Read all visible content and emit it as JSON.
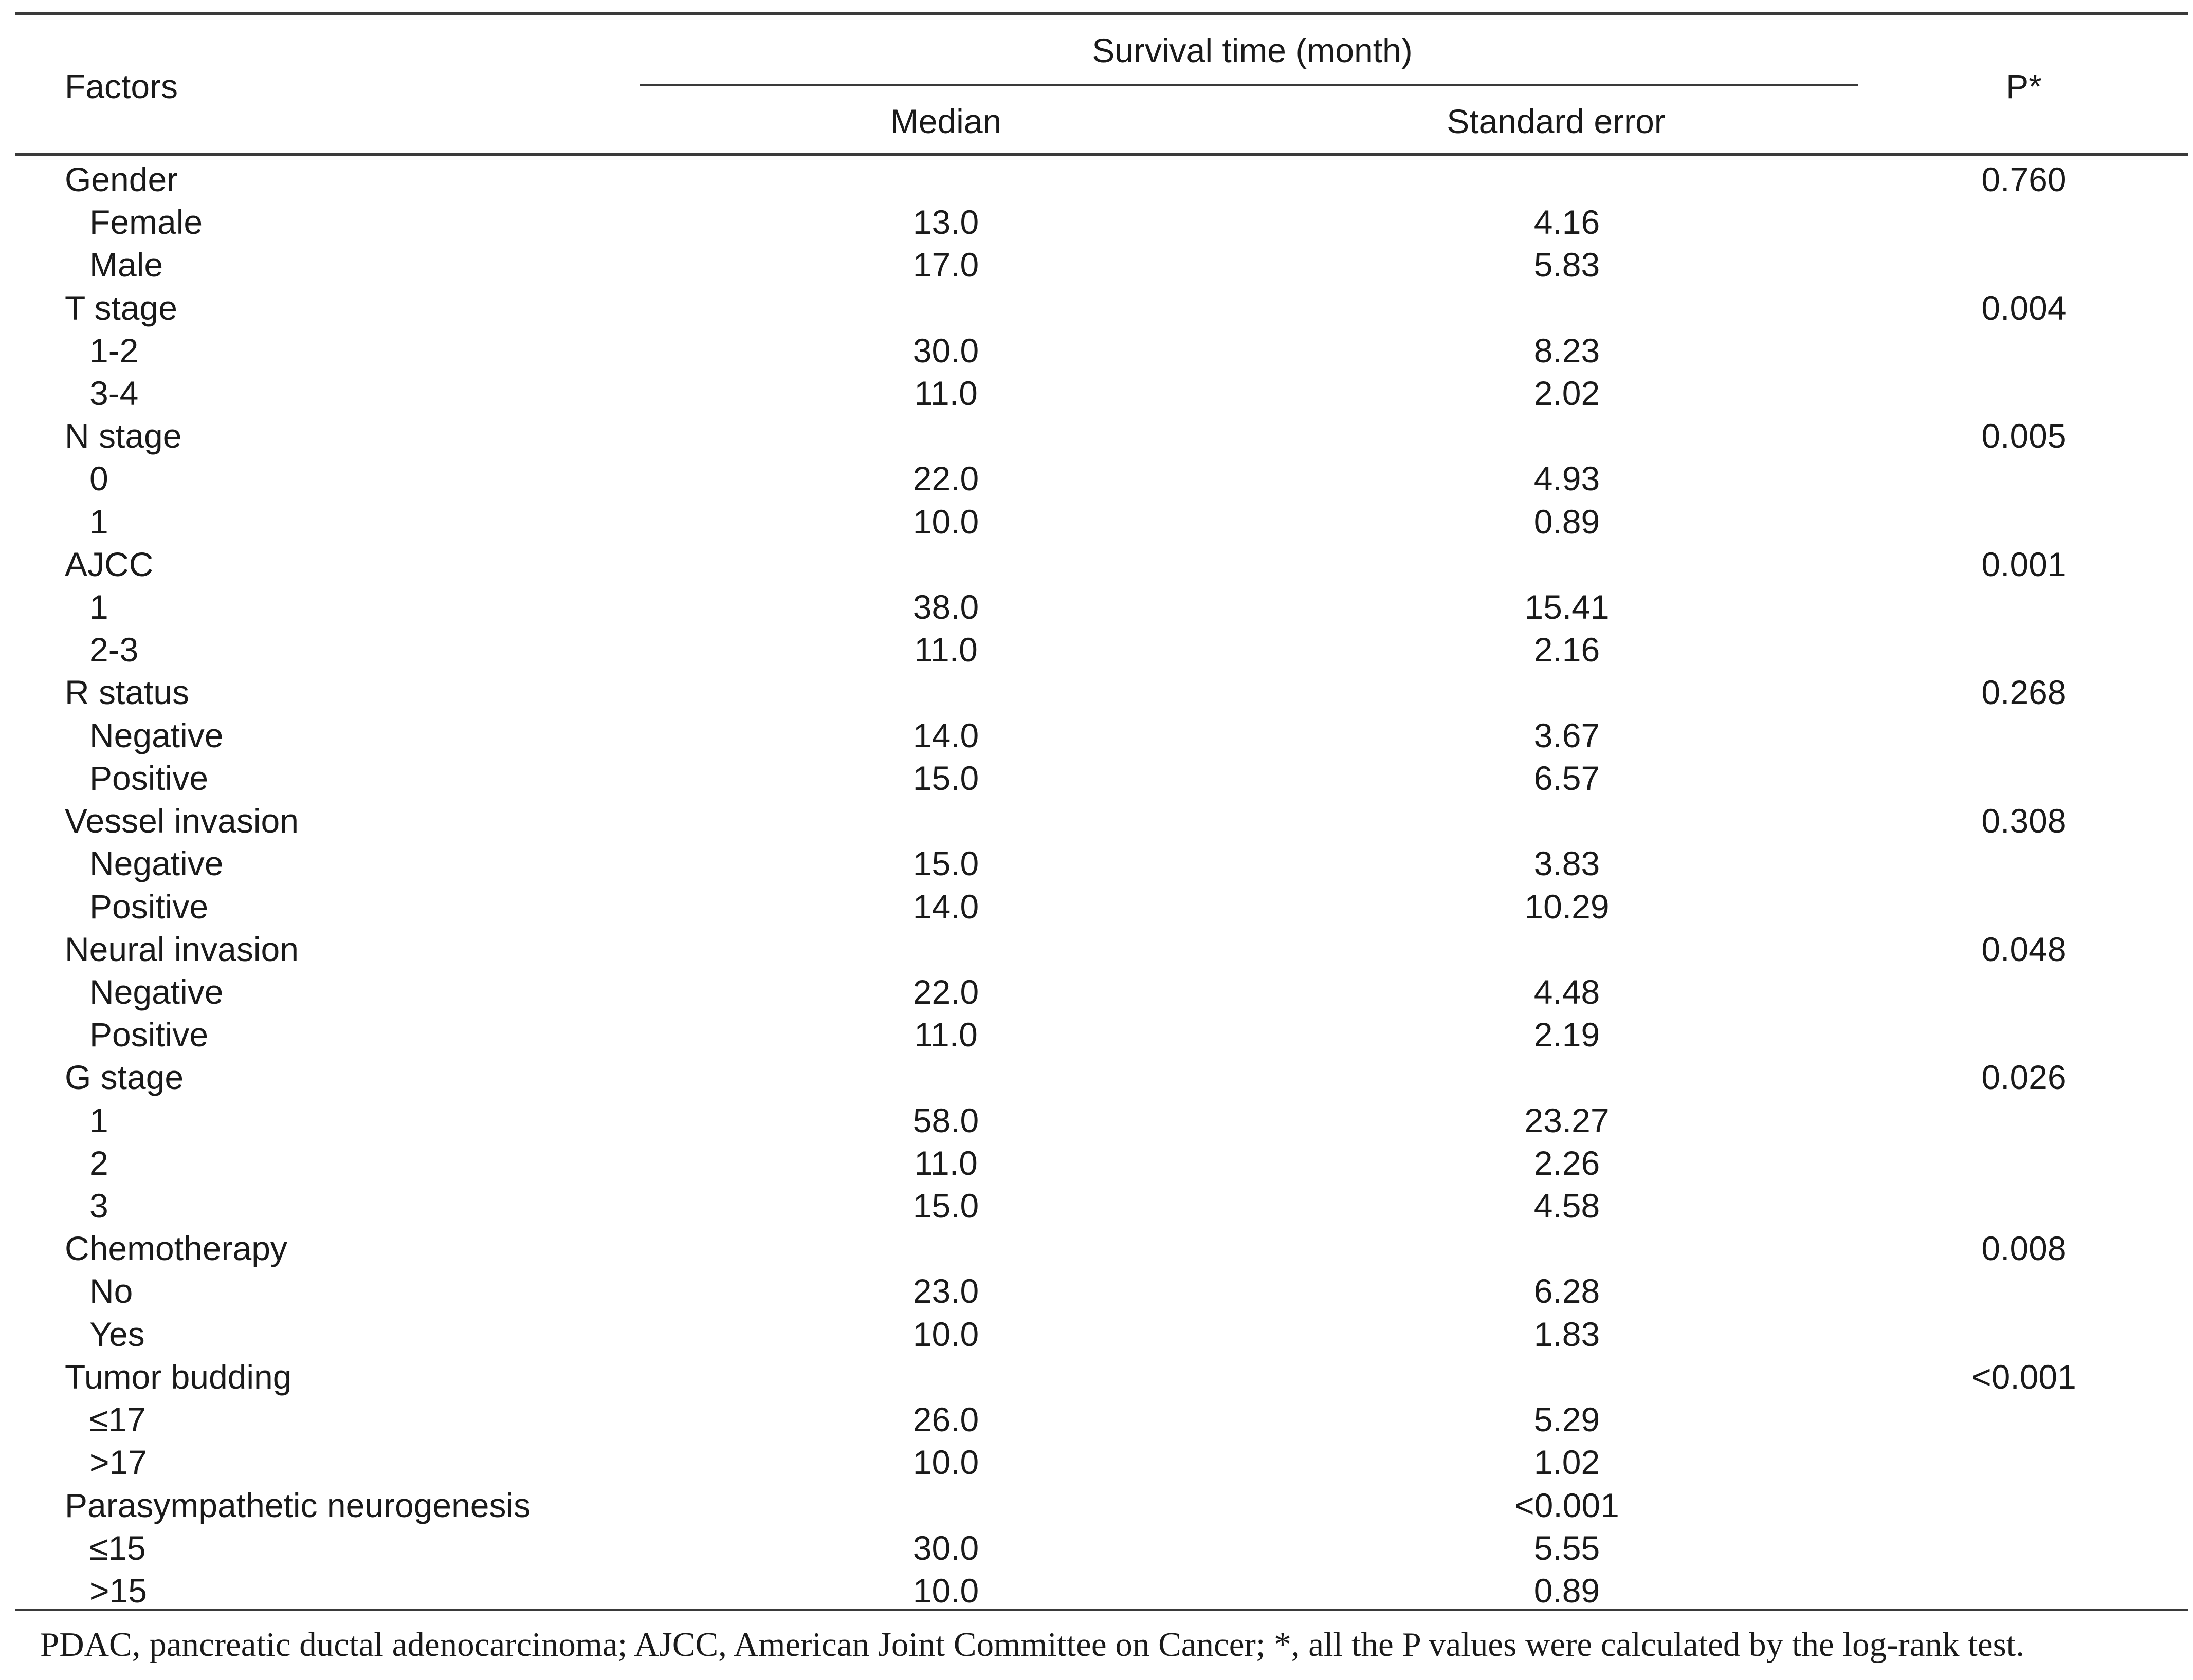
{
  "header": {
    "factors": "Factors",
    "survival_group": "Survival time (month)",
    "median": "Median",
    "standard_error": "Standard error",
    "p": "P*"
  },
  "rows": [
    {
      "kind": "factor",
      "label": "Gender",
      "median": "",
      "se": "",
      "p": "0.760"
    },
    {
      "kind": "level",
      "label": "Female",
      "median": "13.0",
      "se": "4.16",
      "p": ""
    },
    {
      "kind": "level",
      "label": "Male",
      "median": "17.0",
      "se": "5.83",
      "p": ""
    },
    {
      "kind": "factor",
      "label": "T stage",
      "median": "",
      "se": "",
      "p": "0.004"
    },
    {
      "kind": "level",
      "label": "1-2",
      "median": "30.0",
      "se": "8.23",
      "p": ""
    },
    {
      "kind": "level",
      "label": "3-4",
      "median": "11.0",
      "se": "2.02",
      "p": ""
    },
    {
      "kind": "factor",
      "label": "N stage",
      "median": "",
      "se": "",
      "p": "0.005"
    },
    {
      "kind": "level",
      "label": "0",
      "median": "22.0",
      "se": "4.93",
      "p": ""
    },
    {
      "kind": "level",
      "label": "1",
      "median": "10.0",
      "se": "0.89",
      "p": ""
    },
    {
      "kind": "factor",
      "label": "AJCC",
      "median": "",
      "se": "",
      "p": "0.001"
    },
    {
      "kind": "level",
      "label": "1",
      "median": "38.0",
      "se": "15.41",
      "p": ""
    },
    {
      "kind": "level",
      "label": "2-3",
      "median": "11.0",
      "se": "2.16",
      "p": ""
    },
    {
      "kind": "factor",
      "label": "R status",
      "median": "",
      "se": "",
      "p": "0.268"
    },
    {
      "kind": "level",
      "label": "Negative",
      "median": "14.0",
      "se": "3.67",
      "p": ""
    },
    {
      "kind": "level",
      "label": "Positive",
      "median": "15.0",
      "se": "6.57",
      "p": ""
    },
    {
      "kind": "factor",
      "label": "Vessel invasion",
      "median": "",
      "se": "",
      "p": "0.308"
    },
    {
      "kind": "level",
      "label": "Negative",
      "median": "15.0",
      "se": "3.83",
      "p": ""
    },
    {
      "kind": "level",
      "label": "Positive",
      "median": "14.0",
      "se": "10.29",
      "p": ""
    },
    {
      "kind": "factor",
      "label": "Neural invasion",
      "median": "",
      "se": "",
      "p": "0.048"
    },
    {
      "kind": "level",
      "label": "Negative",
      "median": "22.0",
      "se": "4.48",
      "p": ""
    },
    {
      "kind": "level",
      "label": "Positive",
      "median": "11.0",
      "se": "2.19",
      "p": ""
    },
    {
      "kind": "factor",
      "label": "G stage",
      "median": "",
      "se": "",
      "p": "0.026"
    },
    {
      "kind": "level",
      "label": "1",
      "median": "58.0",
      "se": "23.27",
      "p": ""
    },
    {
      "kind": "level",
      "label": "2",
      "median": "11.0",
      "se": "2.26",
      "p": ""
    },
    {
      "kind": "level",
      "label": "3",
      "median": "15.0",
      "se": "4.58",
      "p": ""
    },
    {
      "kind": "factor",
      "label": "Chemotherapy",
      "median": "",
      "se": "",
      "p": "0.008"
    },
    {
      "kind": "level",
      "label": "No",
      "median": "23.0",
      "se": "6.28",
      "p": ""
    },
    {
      "kind": "level",
      "label": "Yes",
      "median": "10.0",
      "se": "1.83",
      "p": ""
    },
    {
      "kind": "factor",
      "label": "Tumor budding",
      "median": "",
      "se": "",
      "p": "<0.001"
    },
    {
      "kind": "level",
      "label": "≤17",
      "median": "26.0",
      "se": "5.29",
      "p": ""
    },
    {
      "kind": "level",
      "label": ">17",
      "median": "10.0",
      "se": "1.02",
      "p": ""
    },
    {
      "kind": "factor",
      "label": "Parasympathetic neurogenesis",
      "median": "",
      "se": "<0.001",
      "p": ""
    },
    {
      "kind": "level",
      "label": "≤15",
      "median": "30.0",
      "se": "5.55",
      "p": ""
    },
    {
      "kind": "level",
      "label": ">15",
      "median": "10.0",
      "se": "0.89",
      "p": ""
    }
  ],
  "footnote": "PDAC, pancreatic ductal adenocarcinoma; AJCC, American Joint Committee on Cancer; *, all the P values were calculated by the log-rank test."
}
